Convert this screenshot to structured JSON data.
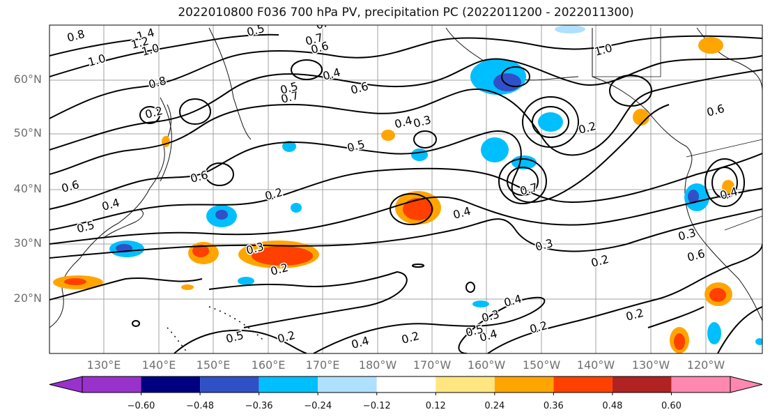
{
  "title": "2022010800 F036 700 hPa PV, precipitation PC (2022011200 - 2022011300)",
  "lat_labels": [
    "60°N",
    "50°N",
    "40°N",
    "30°N",
    "20°N"
  ],
  "lon_labels": [
    "130°E",
    "140°E",
    "150°E",
    "160°E",
    "170°E",
    "180°W",
    "170°W",
    "160°W",
    "150°W",
    "140°W",
    "130°W",
    "120°W"
  ],
  "contour_labels": [
    "0.8",
    "1.4",
    "1.2",
    "1.0",
    "1.0",
    "0.8",
    "0.4",
    "0.5",
    "0.7",
    "0.6",
    "0.4",
    "0.6",
    "0.7",
    "0.5",
    "0.6",
    "0.6",
    "0.4",
    "0.5",
    "0.5",
    "0.2",
    "0.2",
    "0.3",
    "0.4",
    "0.3",
    "0.2",
    "0.2",
    "0.3",
    "0.4",
    "0.2",
    "0.4",
    "0.5",
    "0.6",
    "0.3",
    "0.5",
    "0.2",
    "0.4",
    "0.2",
    "0.2",
    "0.4",
    "0.3",
    "0.2",
    "0.7",
    "0.4",
    "1.0",
    "0.6"
  ],
  "colorbar": {
    "ticks": [
      "−0.60",
      "−0.48",
      "−0.36",
      "−0.24",
      "−0.12",
      "0.12",
      "0.24",
      "0.36",
      "0.48",
      "0.60"
    ],
    "colors": [
      "#9932cc",
      "#000080",
      "#3050c8",
      "#00bfff",
      "#b0e0ff",
      "#ffffff",
      "#ffe680",
      "#ffa500",
      "#ff4000",
      "#b22222",
      "#ff88b0"
    ]
  },
  "positive_color": "#ff5a00",
  "negative_color": "#00b8f0"
}
